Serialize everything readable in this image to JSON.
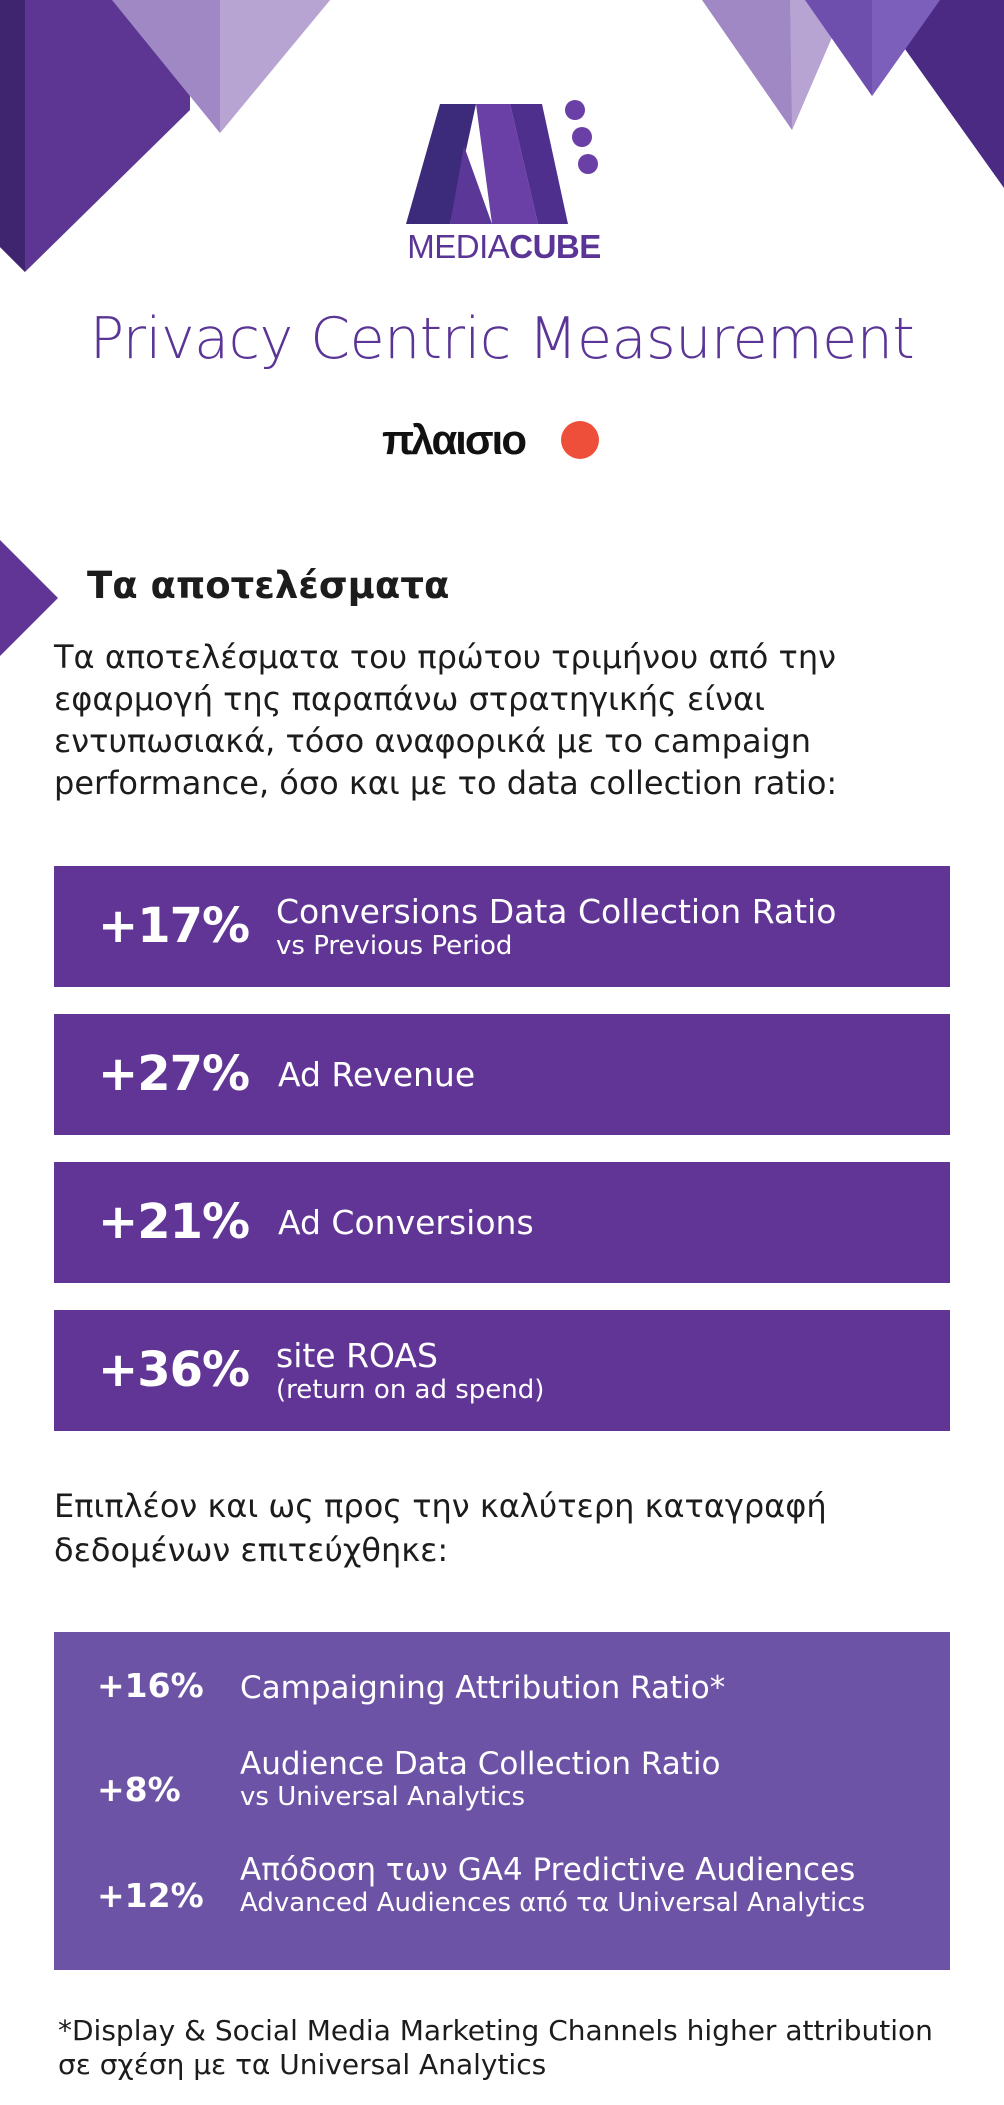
{
  "brand": {
    "logo_word_1": "MEDIA",
    "logo_word_2": "CUBE",
    "accent": "#613595",
    "secondary": "#6d53a6"
  },
  "title": "Privacy Centric Measurement",
  "partner": {
    "name": "πλαισιο",
    "dot_color": "#ee4f3a"
  },
  "section": {
    "heading": "Τα αποτελέσματα",
    "intro": "Τα αποτελέσματα του πρώτου τριμήνου από την εφαρμογή της παραπάνω στρατηγικής είναι εντυπωσιακά, τόσο αναφορικά με το campaign performance, όσο και με το data collection ratio:"
  },
  "stats": [
    {
      "value": "+17%",
      "label": "Conversions Data Collection Ratio",
      "sub": "vs Previous Period"
    },
    {
      "value": "+27%",
      "label": "Ad Revenue",
      "sub": ""
    },
    {
      "value": "+21%",
      "label": "Ad Conversions",
      "sub": ""
    },
    {
      "value": "+36%",
      "label": "site ROAS",
      "sub": "(return on ad spend)"
    }
  ],
  "more_text": "Επιπλέον και ως προς την καλύτερη καταγραφή δεδομένων επιτεύχθηκε:",
  "secondary_stats": [
    {
      "value": "+16%",
      "label": "Campaigning Attribution Ratio*",
      "sub": ""
    },
    {
      "value": "+8%",
      "label": "Audience Data Collection Ratio",
      "sub": "vs Universal Analytics"
    },
    {
      "value": "+12%",
      "label": "Απόδοση των GA4 Predictive Audiences",
      "sub": "Advanced Audiences από τα Universal Analytics"
    }
  ],
  "footnote": "*Display & Social Media Marketing Channels higher attribution σε σχέση με τα Universal Analytics"
}
